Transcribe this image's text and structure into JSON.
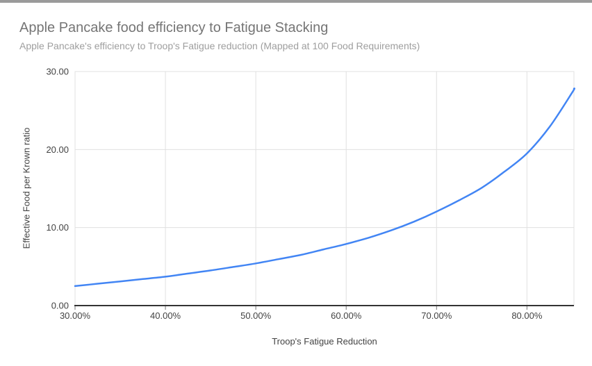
{
  "colors": {
    "series_blue": "#4285f4",
    "grid": "#e0e0e0",
    "axis_text": "#424242",
    "axis_line": "#333333",
    "tick_mark": "#757575",
    "title": "#757575",
    "subtitle": "#9e9e9e",
    "top_bar": "#9a9a9a"
  },
  "chart_data": {
    "type": "line",
    "title": "Apple Pancake food efficiency to Fatigue Stacking",
    "subtitle": "Apple Pancake's efficiency to Troop's Fatigue reduction (Mapped at 100 Food Requirements)",
    "xlabel": "Troop's Fatigue Reduction",
    "ylabel": "Effective Food per Krown ratio",
    "xlim": [
      30,
      85.2
    ],
    "ylim": [
      0,
      30
    ],
    "x_tick_values": [
      30,
      40,
      50,
      60,
      70,
      80
    ],
    "x_tick_labels": [
      "30.00%",
      "40.00%",
      "50.00%",
      "60.00%",
      "70.00%",
      "80.00%"
    ],
    "y_tick_values": [
      0,
      10,
      20,
      30
    ],
    "y_tick_labels": [
      "0.00",
      "10.00",
      "20.00",
      "30.00"
    ],
    "grid": true,
    "legend_position": "none",
    "series": [
      {
        "name": "Effective Food per Krown ratio",
        "color": "#4285f4",
        "x": [
          30,
          32.5,
          35,
          37.5,
          40,
          42.5,
          45,
          47.5,
          50,
          52.5,
          55,
          57.5,
          60,
          62.5,
          65,
          67.5,
          70,
          72.5,
          75,
          77.5,
          80,
          82.5,
          85,
          85.2
        ],
        "y": [
          2.5,
          2.8,
          3.1,
          3.4,
          3.7,
          4.1,
          4.5,
          4.95,
          5.4,
          5.95,
          6.5,
          7.2,
          7.9,
          8.7,
          9.65,
          10.75,
          12.05,
          13.5,
          15.1,
          17.15,
          19.5,
          22.9,
          27.3,
          27.8
        ]
      }
    ]
  }
}
